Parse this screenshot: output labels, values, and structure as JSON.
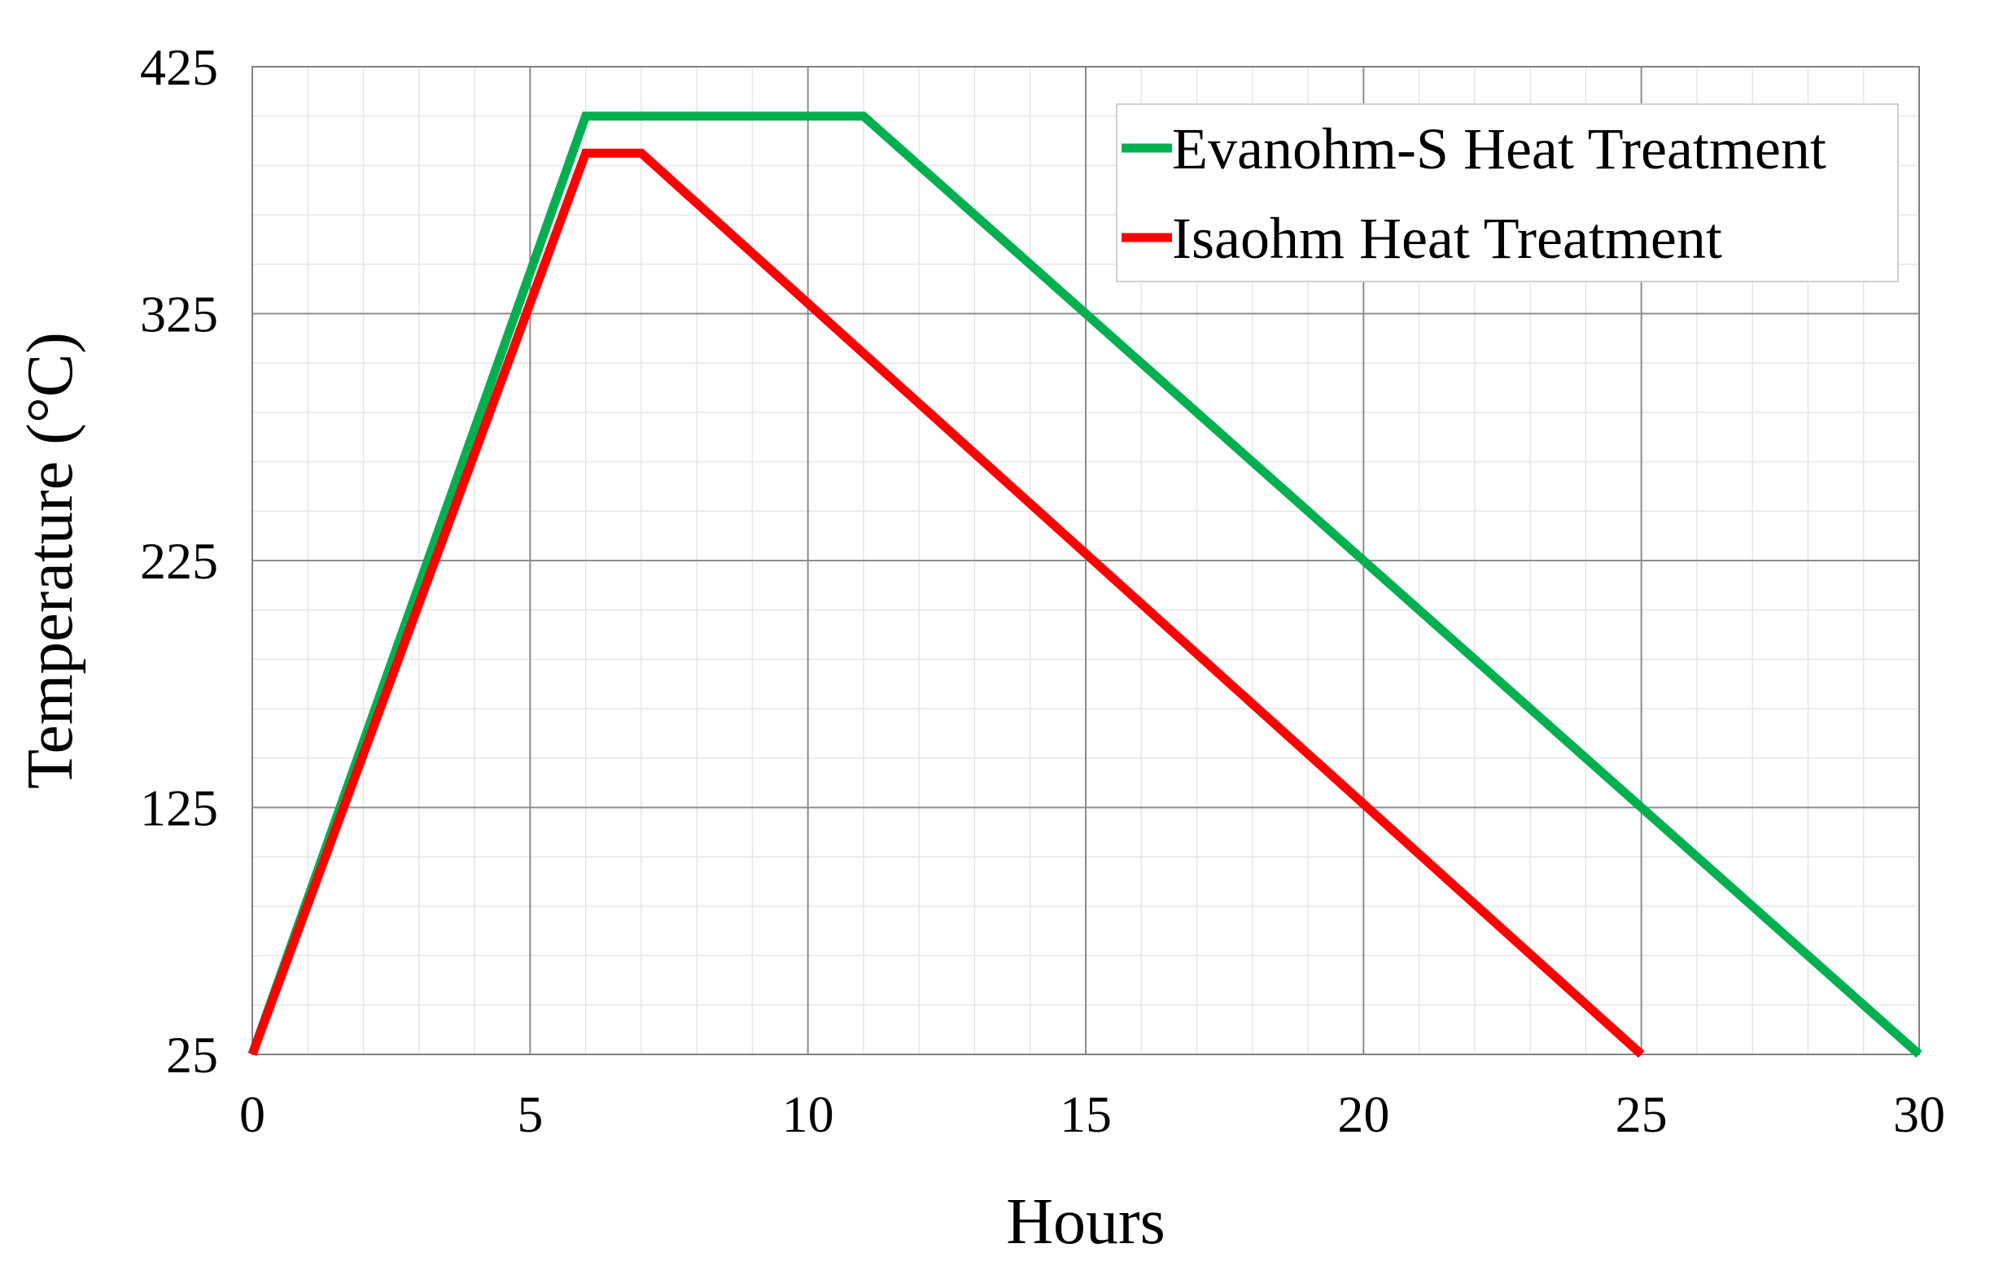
{
  "chart_data": {
    "type": "line",
    "title": "",
    "xlabel": "Hours",
    "ylabel": "Temperature (°C)",
    "xlim": [
      0,
      30
    ],
    "ylim": [
      25,
      425
    ],
    "x_ticks": [
      0,
      5,
      10,
      15,
      20,
      25,
      30
    ],
    "y_ticks": [
      25,
      125,
      225,
      325,
      425
    ],
    "x_tick_labels": [
      "0",
      "5",
      "10",
      "15",
      "20",
      "25",
      "30"
    ],
    "y_tick_labels": [
      "25",
      "125",
      "225",
      "325",
      "425"
    ],
    "grid": true,
    "minor_grid": true,
    "legend_position": "top-right",
    "series": [
      {
        "name": "Evanohm-S Heat Treatment",
        "color": "#00b050",
        "x": [
          0,
          6,
          11,
          30
        ],
        "y": [
          25,
          405,
          405,
          25
        ]
      },
      {
        "name": "Isaohm Heat Treatment",
        "color": "#ff0000",
        "x": [
          0,
          6,
          7,
          25
        ],
        "y": [
          25,
          390,
          390,
          25
        ]
      }
    ]
  }
}
